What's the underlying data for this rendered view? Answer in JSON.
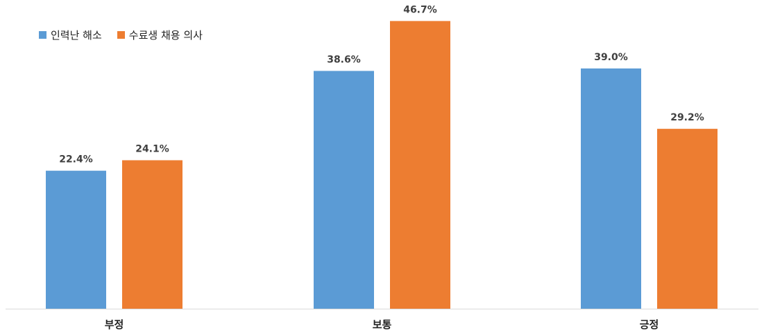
{
  "chart_data": {
    "type": "bar",
    "categories": [
      "부정",
      "보통",
      "긍정"
    ],
    "series": [
      {
        "name": "인력난 해소",
        "values": [
          22.4,
          38.6,
          39.0
        ],
        "labels": [
          "22.4%",
          "38.6%",
          "39.0%"
        ],
        "color": "#5B9BD5"
      },
      {
        "name": "수료생 채용 의사",
        "values": [
          24.1,
          46.7,
          29.2
        ],
        "labels": [
          "24.1%",
          "46.7%",
          "29.2%"
        ],
        "color": "#ED7D31"
      }
    ],
    "unit": "%",
    "ylim": [
      0,
      50
    ],
    "grid": false,
    "legend_position": "top-left"
  }
}
